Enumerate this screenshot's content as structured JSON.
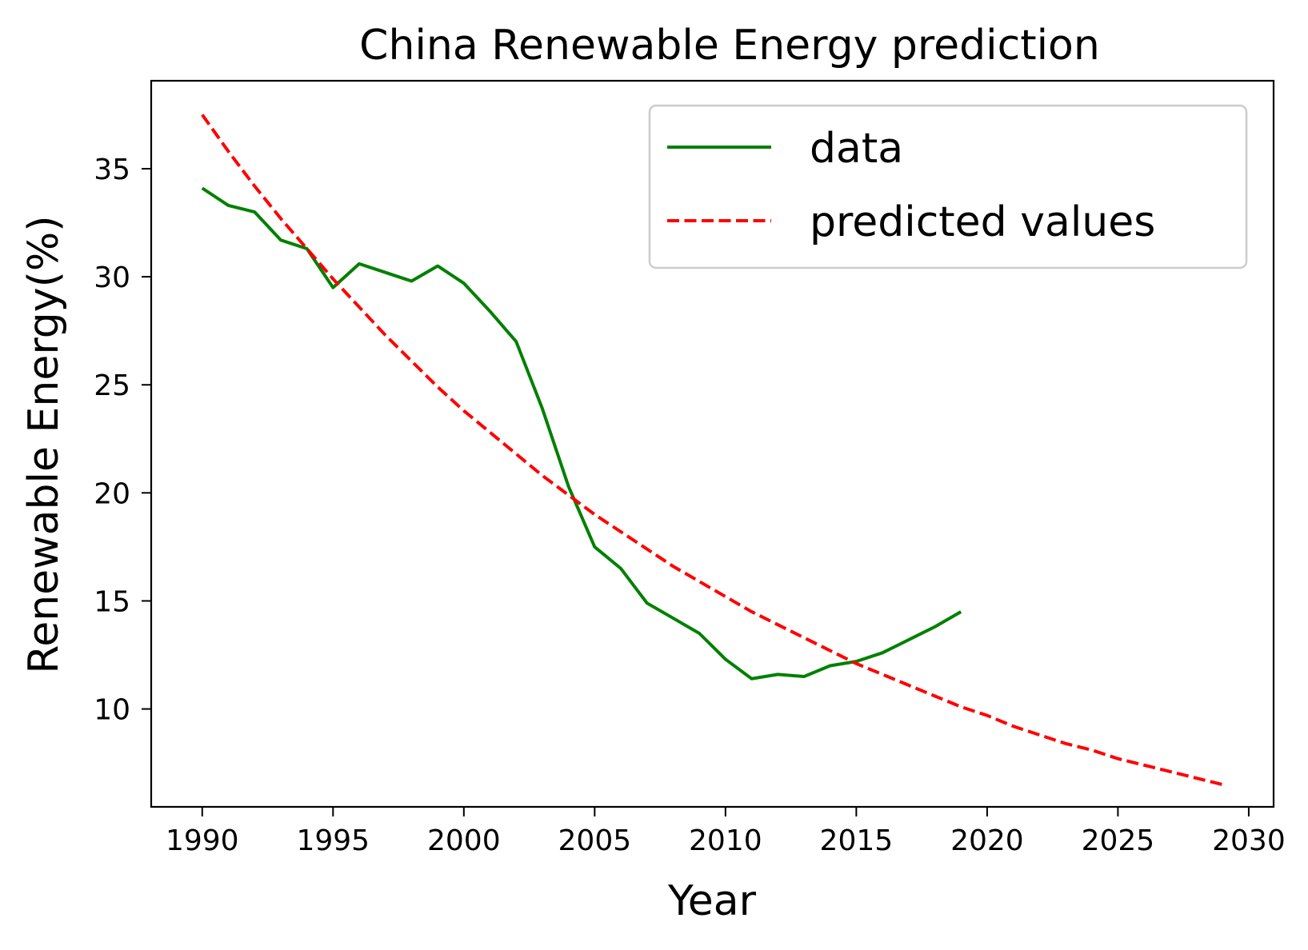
{
  "chart_data": {
    "type": "line",
    "title": "China Renewable Energy prediction",
    "xlabel": "Year",
    "ylabel": "Renewable Energy(%)",
    "xlim": [
      1988.05,
      2030.95
    ],
    "ylim": [
      5.47,
      39.07
    ],
    "xticks": [
      1990,
      1995,
      2000,
      2005,
      2010,
      2015,
      2020,
      2025,
      2030
    ],
    "yticks": [
      10,
      15,
      20,
      25,
      30,
      35
    ],
    "grid": false,
    "legend_position": "top-right",
    "series": [
      {
        "name": "data",
        "color": "#008000",
        "style": "solid",
        "x": [
          1990,
          1991,
          1992,
          1993,
          1994,
          1995,
          1996,
          1997,
          1998,
          1999,
          2000,
          2001,
          2002,
          2003,
          2004,
          2005,
          2006,
          2007,
          2008,
          2009,
          2010,
          2011,
          2012,
          2013,
          2014,
          2015,
          2016,
          2017,
          2018,
          2019
        ],
        "y": [
          34.1,
          33.3,
          33.0,
          31.7,
          31.3,
          29.5,
          30.6,
          30.2,
          29.8,
          30.5,
          29.7,
          28.4,
          27.0,
          23.9,
          20.3,
          17.5,
          16.5,
          14.9,
          14.2,
          13.5,
          12.3,
          11.4,
          11.6,
          11.5,
          12.0,
          12.2,
          12.6,
          13.2,
          13.8,
          14.5
        ]
      },
      {
        "name": "predicted values",
        "color": "#ff0000",
        "style": "dashed",
        "x": [
          1990,
          1991,
          1992,
          1993,
          1994,
          1995,
          1996,
          1997,
          1998,
          1999,
          2000,
          2001,
          2002,
          2003,
          2004,
          2005,
          2006,
          2007,
          2008,
          2009,
          2010,
          2011,
          2012,
          2013,
          2014,
          2015,
          2016,
          2017,
          2018,
          2019,
          2020,
          2021,
          2022,
          2023,
          2024,
          2025,
          2026,
          2027,
          2028,
          2029
        ],
        "y": [
          37.5,
          35.8,
          34.2,
          32.7,
          31.3,
          29.9,
          28.6,
          27.3,
          26.1,
          24.9,
          23.8,
          22.8,
          21.8,
          20.8,
          19.9,
          19.0,
          18.2,
          17.4,
          16.6,
          15.9,
          15.2,
          14.5,
          13.9,
          13.3,
          12.7,
          12.1,
          11.6,
          11.1,
          10.6,
          10.1,
          9.7,
          9.2,
          8.8,
          8.4,
          8.1,
          7.7,
          7.4,
          7.1,
          6.8,
          6.5
        ]
      }
    ]
  }
}
